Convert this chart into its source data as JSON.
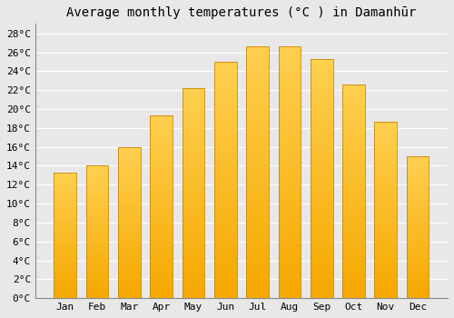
{
  "title": "Average monthly temperatures (°C ) in Damanhūr",
  "months": [
    "Jan",
    "Feb",
    "Mar",
    "Apr",
    "May",
    "Jun",
    "Jul",
    "Aug",
    "Sep",
    "Oct",
    "Nov",
    "Dec"
  ],
  "values": [
    13.3,
    14.0,
    16.0,
    19.3,
    22.2,
    25.0,
    26.6,
    26.6,
    25.3,
    22.6,
    18.7,
    15.0
  ],
  "bar_color_top": "#FFC125",
  "bar_color_bottom": "#F5A800",
  "bar_edge_color": "#C8860A",
  "ylim": [
    0,
    29
  ],
  "ytick_step": 2,
  "background_color": "#e8e8e8",
  "plot_bg_color": "#e8e8e8",
  "grid_color": "#ffffff",
  "title_fontsize": 10,
  "tick_fontsize": 8,
  "font_family": "monospace",
  "left_spine_color": "#888888"
}
